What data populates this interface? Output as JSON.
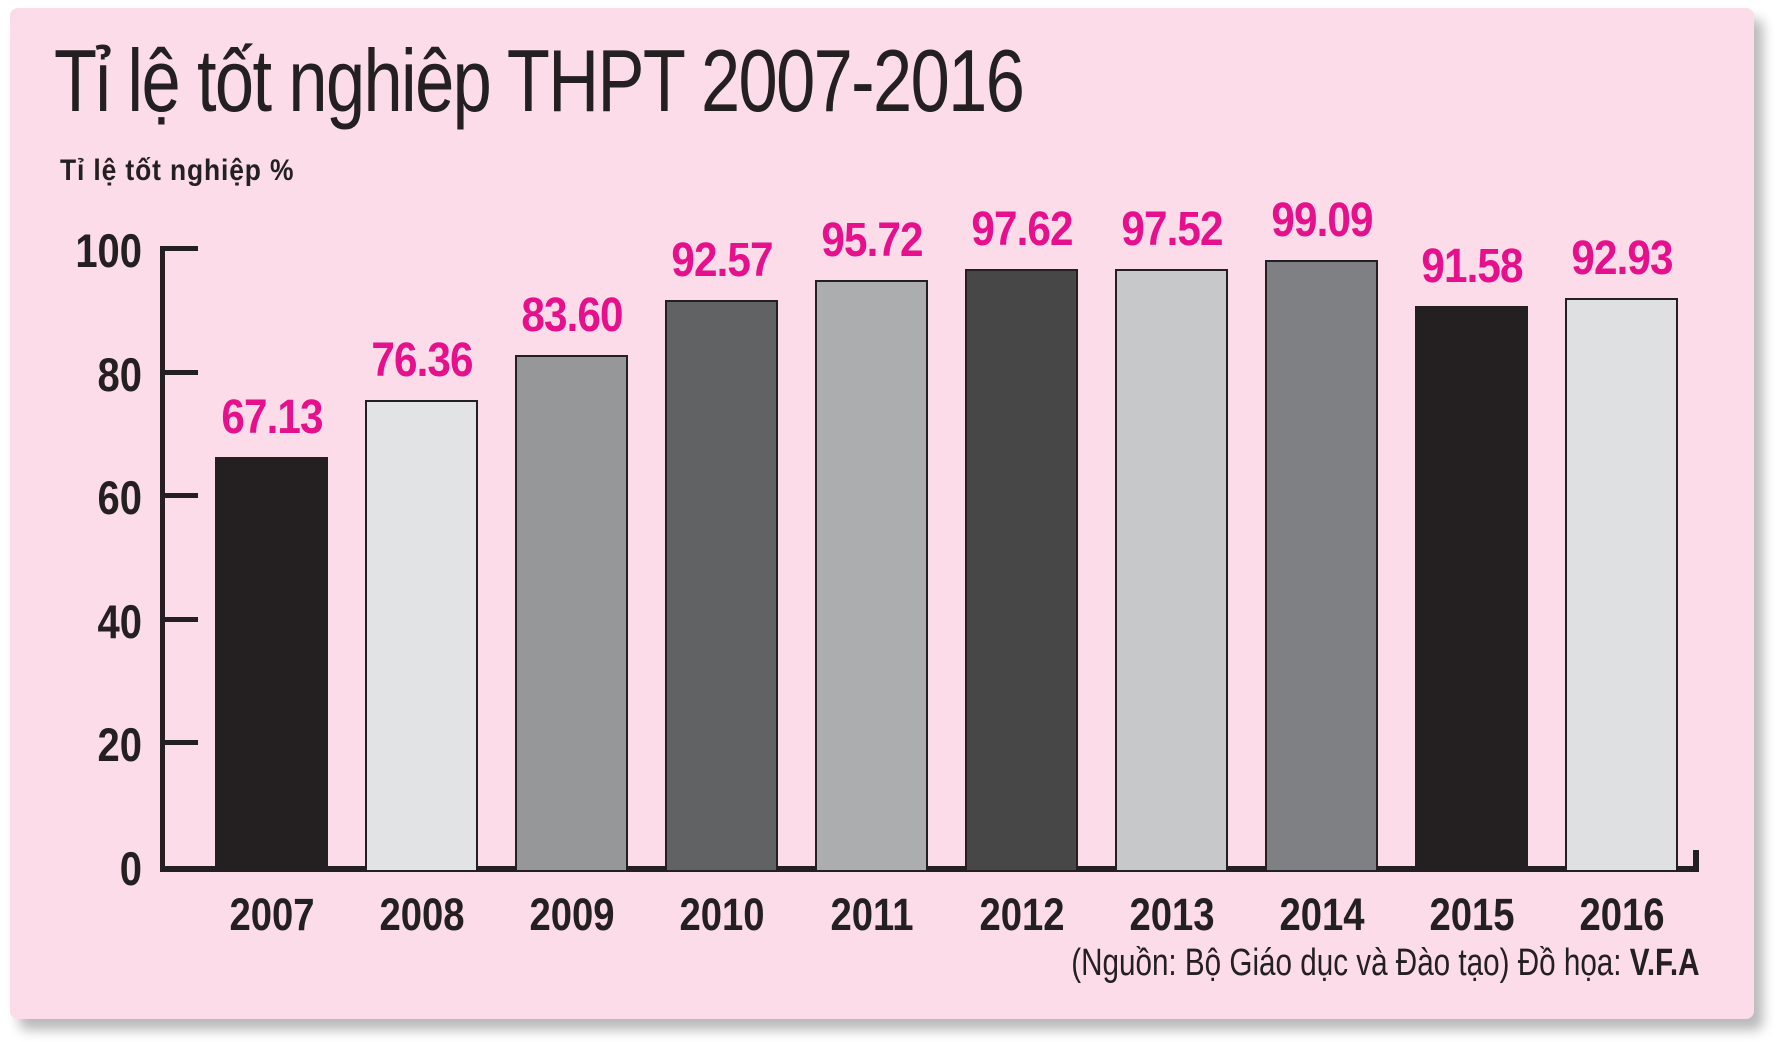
{
  "title": "Tỉ lệ tốt nghiêp THPT 2007-2016",
  "colors": {
    "background": "#ffffff",
    "card": "#fbdce8",
    "ink": "#242021",
    "value_label": "#e6108c"
  },
  "chart_data": {
    "type": "bar",
    "title": "Tỉ lệ tốt nghiêp THPT 2007-2016",
    "ylabel": "Tỉ lệ tốt nghiệp %",
    "xlabel": "",
    "categories": [
      "2007",
      "2008",
      "2009",
      "2010",
      "2011",
      "2012",
      "2013",
      "2014",
      "2015",
      "2016"
    ],
    "values": [
      67.13,
      76.36,
      83.6,
      92.57,
      95.72,
      97.62,
      97.52,
      99.09,
      91.58,
      92.93
    ],
    "value_labels": [
      "67.13",
      "76.36",
      "83.60",
      "92.57",
      "95.72",
      "97.62",
      "97.52",
      "99.09",
      "91.58",
      "92.93"
    ],
    "bar_colors": [
      "#242021",
      "#e2e3e4",
      "#959799",
      "#616264",
      "#abadaf",
      "#474748",
      "#c6c8ca",
      "#7e8083",
      "#242021",
      "#dfe0e2"
    ],
    "y_ticks": [
      0,
      20,
      40,
      60,
      80,
      100
    ],
    "ylim": [
      0,
      100
    ],
    "grid": false,
    "legend": false,
    "source_prefix": "(Nguồn: Bộ Giáo dục và Đào tạo) Đồ họa: ",
    "source_credit": "V.F.A"
  }
}
